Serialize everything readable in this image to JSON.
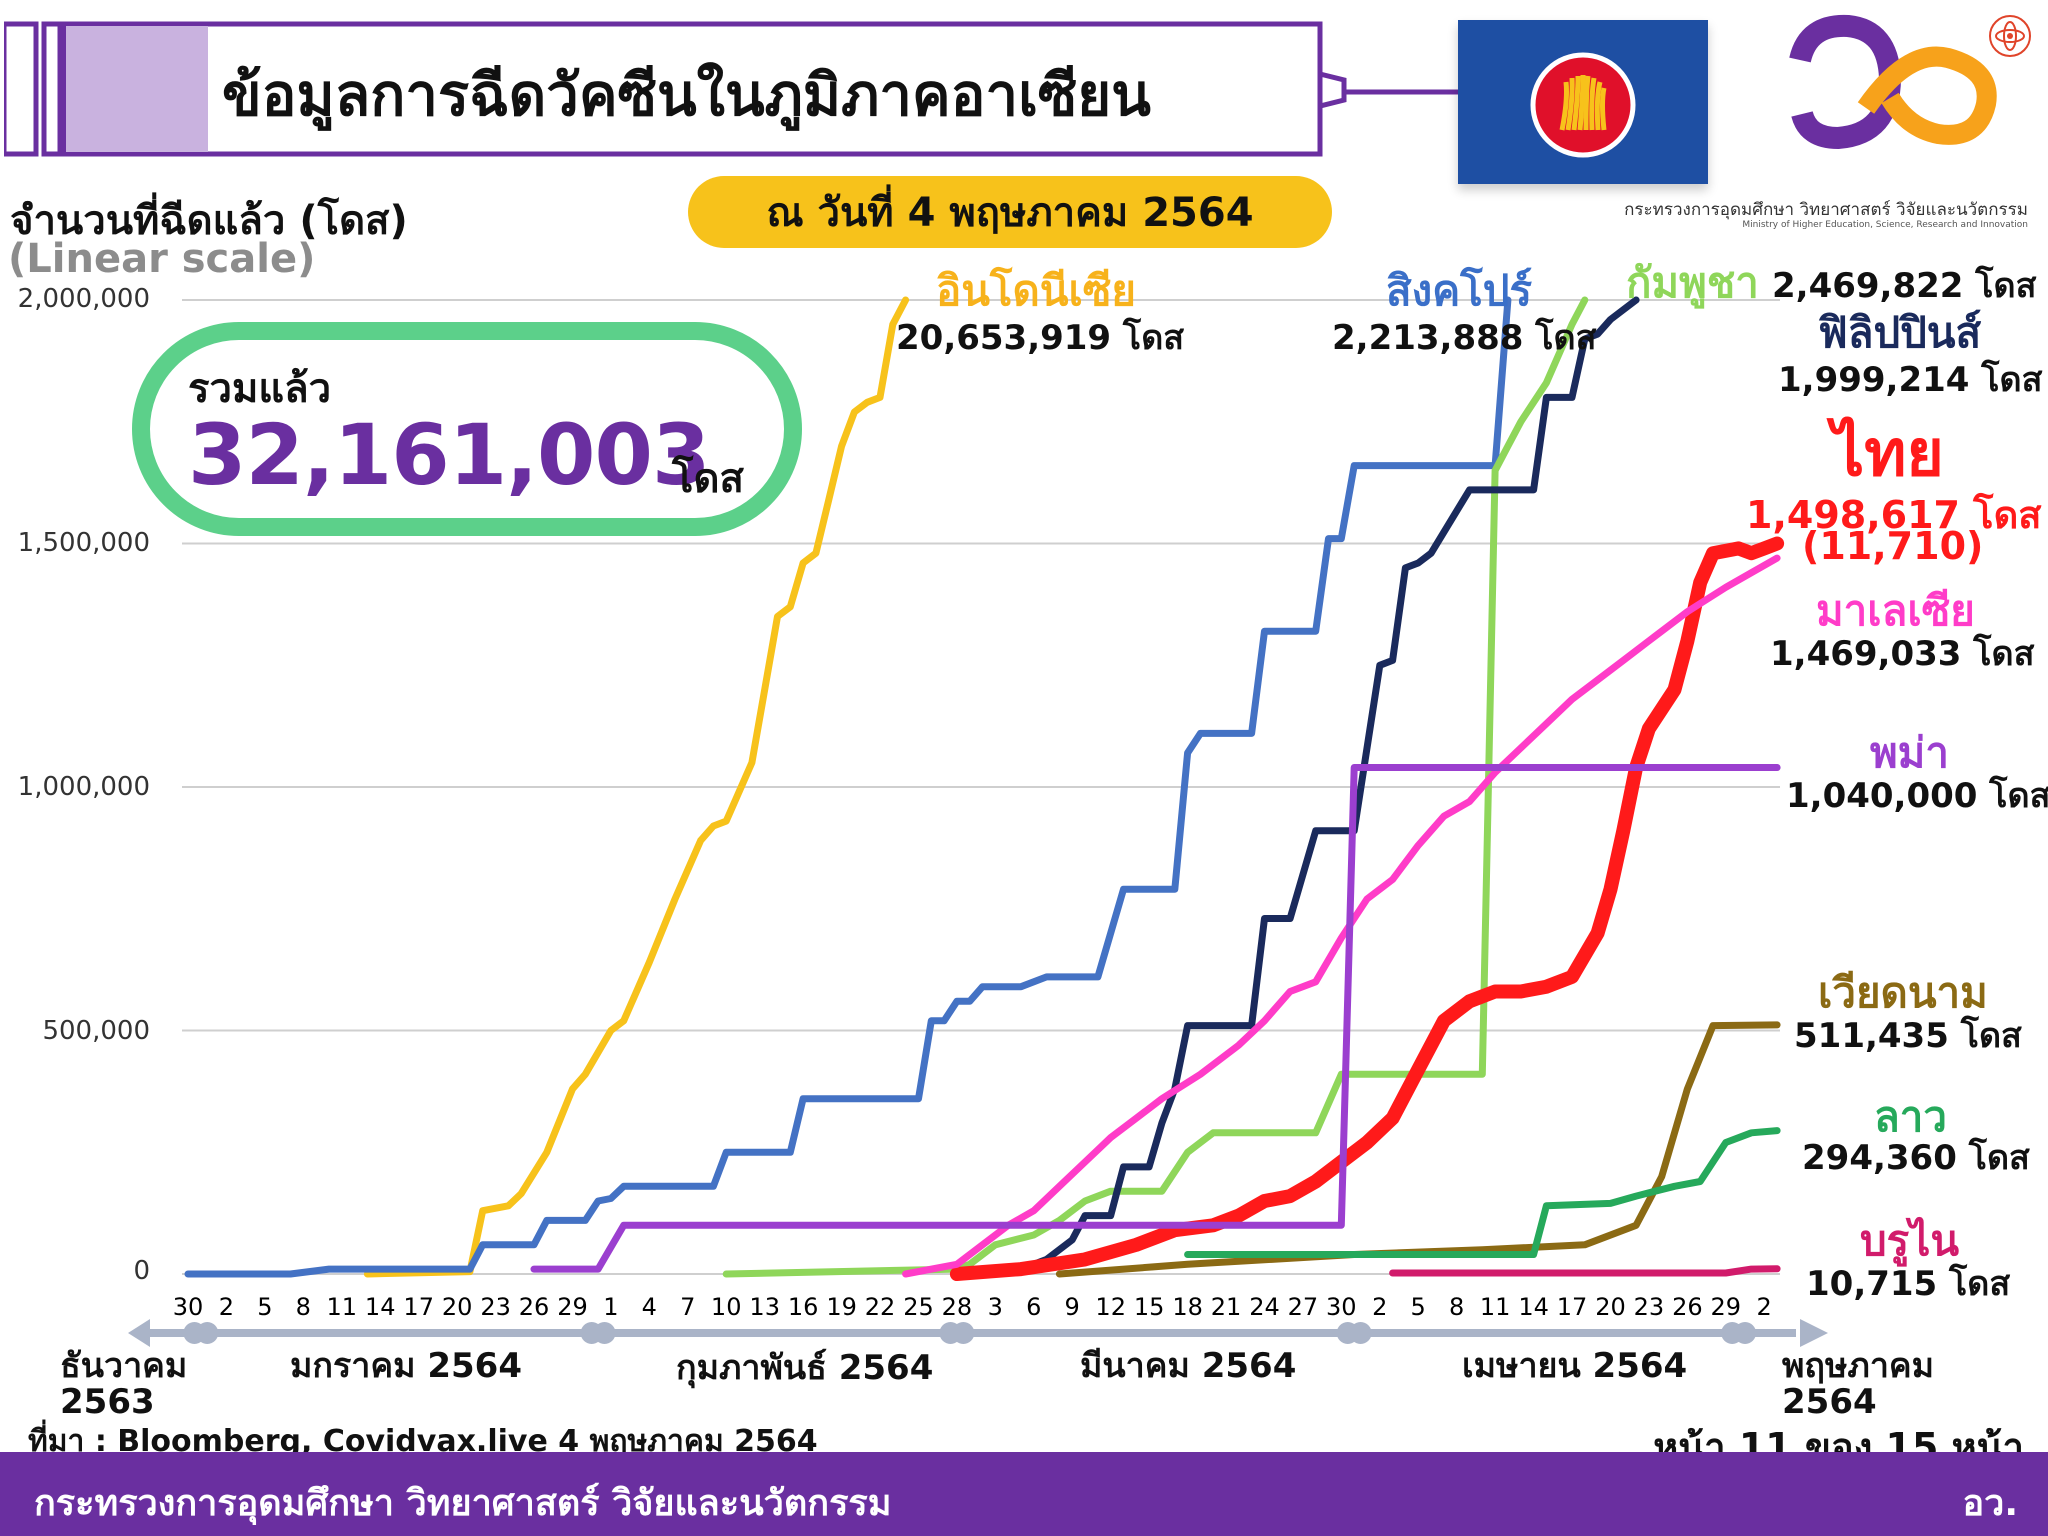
{
  "header": {
    "title": "ข้อมูลการฉีดวัคซีนในภูมิภาคอาเซียน",
    "date": "ณ วันที่ 4 พฤษภาคม 2564",
    "ministry_th": "กระทรวงการอุดมศึกษา วิทยาศาสตร์ วิจัยและนวัตกรรม",
    "ministry_en": "Ministry of Higher Education, Science, Research and Innovation"
  },
  "colors": {
    "purple": "#6a2fa0",
    "green_box": "#5cd08a",
    "date_pill": "#f7c21b",
    "asean_blue": "#1e4fa3"
  },
  "icons": [
    "asean-flag-icon",
    "ministry-logo-icon",
    "atom-icon"
  ],
  "total": {
    "label": "รวมแล้ว",
    "value": "32,161,003",
    "unit": "โดส"
  },
  "footer": {
    "org": "กระทรวงการอุดมศึกษา วิทยาศาสตร์ วิจัยและนวัตกรรม",
    "abbr": "อว.",
    "source": "ที่มา : Bloomberg, Covidvax.live 4 พฤษภาคม 2564",
    "page": "หน้า 11 ของ 15 หน้า"
  },
  "chart_data": {
    "type": "line",
    "ylabel": "จำนวนที่ฉีดแล้ว (โดส)",
    "yscale": "(Linear scale)",
    "ylim": [
      0,
      2000000
    ],
    "yticks": [
      "0",
      "500,000",
      "1,000,000",
      "1,500,000",
      "2,000,000"
    ],
    "ytick_values": [
      0,
      500000,
      1000000,
      1500000,
      2000000
    ],
    "grid": true,
    "x_day_labels": [
      "30",
      "2",
      "5",
      "8",
      "11",
      "14",
      "17",
      "20",
      "23",
      "26",
      "29",
      "1",
      "4",
      "7",
      "10",
      "13",
      "16",
      "19",
      "22",
      "25",
      "28",
      "3",
      "6",
      "9",
      "12",
      "15",
      "18",
      "21",
      "24",
      "27",
      "30",
      "2",
      "5",
      "8",
      "11",
      "14",
      "17",
      "20",
      "23",
      "26",
      "29",
      "2"
    ],
    "x_day_start": "2020-12-30",
    "months": [
      {
        "label": "ธันวาคม\n2563"
      },
      {
        "label": "มกราคม 2564"
      },
      {
        "label": "กุมภาพันธ์ 2564"
      },
      {
        "label": "มีนาคม 2564"
      },
      {
        "label": "เมษายน 2564"
      },
      {
        "label": "พฤษภาคม\n2564"
      }
    ],
    "series": [
      {
        "name": "อินโดนีเซีย",
        "color": "#f7c21b",
        "doses": "20,653,919 โดส",
        "points": [
          [
            "2021-01-13",
            0
          ],
          [
            "2021-01-21",
            5000
          ],
          [
            "2021-01-22",
            130000
          ],
          [
            "2021-01-24",
            140000
          ],
          [
            "2021-01-25",
            165000
          ],
          [
            "2021-01-27",
            250000
          ],
          [
            "2021-01-29",
            380000
          ],
          [
            "2021-01-30",
            410000
          ],
          [
            "2021-02-01",
            500000
          ],
          [
            "2021-02-02",
            520000
          ],
          [
            "2021-02-04",
            640000
          ],
          [
            "2021-02-06",
            770000
          ],
          [
            "2021-02-08",
            890000
          ],
          [
            "2021-02-09",
            920000
          ],
          [
            "2021-02-10",
            930000
          ],
          [
            "2021-02-12",
            1050000
          ],
          [
            "2021-02-13",
            1200000
          ],
          [
            "2021-02-14",
            1350000
          ],
          [
            "2021-02-15",
            1370000
          ],
          [
            "2021-02-16",
            1460000
          ],
          [
            "2021-02-17",
            1480000
          ],
          [
            "2021-02-18",
            1590000
          ],
          [
            "2021-02-19",
            1700000
          ],
          [
            "2021-02-20",
            1770000
          ],
          [
            "2021-02-21",
            1790000
          ],
          [
            "2021-02-22",
            1800000
          ],
          [
            "2021-02-23",
            1950000
          ],
          [
            "2021-02-24",
            2000000
          ]
        ]
      },
      {
        "name": "สิงคโปร์",
        "color": "#4472c4",
        "doses": "2,213,888 โดส",
        "points": [
          [
            "2020-12-30",
            0
          ],
          [
            "2021-01-07",
            0
          ],
          [
            "2021-01-10",
            10000
          ],
          [
            "2021-01-21",
            10000
          ],
          [
            "2021-01-22",
            60000
          ],
          [
            "2021-01-26",
            60000
          ],
          [
            "2021-01-27",
            110000
          ],
          [
            "2021-01-30",
            110000
          ],
          [
            "2021-01-31",
            150000
          ],
          [
            "2021-02-01",
            155000
          ],
          [
            "2021-02-02",
            180000
          ],
          [
            "2021-02-09",
            180000
          ],
          [
            "2021-02-10",
            250000
          ],
          [
            "2021-02-15",
            250000
          ],
          [
            "2021-02-16",
            360000
          ],
          [
            "2021-02-25",
            360000
          ],
          [
            "2021-02-26",
            520000
          ],
          [
            "2021-02-27",
            520000
          ],
          [
            "2021-02-28",
            560000
          ],
          [
            "2021-03-01",
            560000
          ],
          [
            "2021-03-02",
            590000
          ],
          [
            "2021-03-05",
            590000
          ],
          [
            "2021-03-07",
            610000
          ],
          [
            "2021-03-11",
            610000
          ],
          [
            "2021-03-13",
            790000
          ],
          [
            "2021-03-17",
            790000
          ],
          [
            "2021-03-18",
            1070000
          ],
          [
            "2021-03-19",
            1110000
          ],
          [
            "2021-03-23",
            1110000
          ],
          [
            "2021-03-24",
            1320000
          ],
          [
            "2021-03-28",
            1320000
          ],
          [
            "2021-03-29",
            1510000
          ],
          [
            "2021-03-30",
            1510000
          ],
          [
            "2021-03-31",
            1660000
          ],
          [
            "2021-04-11",
            1660000
          ],
          [
            "2021-04-12",
            2000000
          ]
        ]
      },
      {
        "name": "กัมพูชา",
        "color": "#8fd65a",
        "doses": "2,469,822 โดส",
        "points": [
          [
            "2021-02-10",
            0
          ],
          [
            "2021-02-28",
            10000
          ],
          [
            "2021-03-01",
            20000
          ],
          [
            "2021-03-03",
            60000
          ],
          [
            "2021-03-06",
            80000
          ],
          [
            "2021-03-08",
            110000
          ],
          [
            "2021-03-10",
            150000
          ],
          [
            "2021-03-12",
            170000
          ],
          [
            "2021-03-16",
            170000
          ],
          [
            "2021-03-18",
            250000
          ],
          [
            "2021-03-20",
            290000
          ],
          [
            "2021-03-28",
            290000
          ],
          [
            "2021-03-30",
            410000
          ],
          [
            "2021-04-10",
            410000
          ],
          [
            "2021-04-11",
            1650000
          ],
          [
            "2021-04-12",
            1700000
          ],
          [
            "2021-04-13",
            1750000
          ],
          [
            "2021-04-15",
            1830000
          ],
          [
            "2021-04-17",
            1950000
          ],
          [
            "2021-04-18",
            2000000
          ]
        ]
      },
      {
        "name": "ฟิลิปปินส์",
        "color": "#1a2a5c",
        "doses": "1,999,214 โดส",
        "points": [
          [
            "2021-03-01",
            0
          ],
          [
            "2021-03-05",
            10000
          ],
          [
            "2021-03-07",
            30000
          ],
          [
            "2021-03-09",
            70000
          ],
          [
            "2021-03-10",
            120000
          ],
          [
            "2021-03-12",
            120000
          ],
          [
            "2021-03-13",
            220000
          ],
          [
            "2021-03-15",
            220000
          ],
          [
            "2021-03-16",
            310000
          ],
          [
            "2021-03-17",
            380000
          ],
          [
            "2021-03-18",
            510000
          ],
          [
            "2021-03-23",
            510000
          ],
          [
            "2021-03-24",
            730000
          ],
          [
            "2021-03-26",
            730000
          ],
          [
            "2021-03-28",
            910000
          ],
          [
            "2021-03-31",
            910000
          ],
          [
            "2021-04-02",
            1250000
          ],
          [
            "2021-04-03",
            1260000
          ],
          [
            "2021-04-04",
            1450000
          ],
          [
            "2021-04-05",
            1460000
          ],
          [
            "2021-04-06",
            1480000
          ],
          [
            "2021-04-09",
            1610000
          ],
          [
            "2021-04-14",
            1610000
          ],
          [
            "2021-04-15",
            1800000
          ],
          [
            "2021-04-17",
            1800000
          ],
          [
            "2021-04-18",
            1920000
          ],
          [
            "2021-04-19",
            1930000
          ],
          [
            "2021-04-20",
            1960000
          ],
          [
            "2021-04-22",
            2000000
          ]
        ]
      },
      {
        "name": "ไทย",
        "color": "#ff1a1a",
        "doses": "1,498,617 โดส",
        "extra": "(11,710)",
        "points": [
          [
            "2021-02-28",
            0
          ],
          [
            "2021-03-05",
            10000
          ],
          [
            "2021-03-10",
            30000
          ],
          [
            "2021-03-14",
            60000
          ],
          [
            "2021-03-17",
            90000
          ],
          [
            "2021-03-20",
            100000
          ],
          [
            "2021-03-22",
            120000
          ],
          [
            "2021-03-24",
            150000
          ],
          [
            "2021-03-26",
            160000
          ],
          [
            "2021-03-28",
            190000
          ],
          [
            "2021-03-30",
            230000
          ],
          [
            "2021-04-01",
            270000
          ],
          [
            "2021-04-03",
            320000
          ],
          [
            "2021-04-05",
            420000
          ],
          [
            "2021-04-07",
            520000
          ],
          [
            "2021-04-09",
            560000
          ],
          [
            "2021-04-11",
            580000
          ],
          [
            "2021-04-13",
            580000
          ],
          [
            "2021-04-15",
            590000
          ],
          [
            "2021-04-17",
            610000
          ],
          [
            "2021-04-19",
            700000
          ],
          [
            "2021-04-20",
            790000
          ],
          [
            "2021-04-21",
            910000
          ],
          [
            "2021-04-22",
            1040000
          ],
          [
            "2021-04-23",
            1120000
          ],
          [
            "2021-04-25",
            1200000
          ],
          [
            "2021-04-26",
            1300000
          ],
          [
            "2021-04-27",
            1420000
          ],
          [
            "2021-04-28",
            1480000
          ],
          [
            "2021-04-30",
            1490000
          ],
          [
            "2021-05-01",
            1480000
          ],
          [
            "2021-05-02",
            1490000
          ],
          [
            "2021-05-03",
            1500000
          ]
        ]
      },
      {
        "name": "มาเลเซีย",
        "color": "#ff3cc8",
        "doses": "1,469,033 โดส",
        "points": [
          [
            "2021-02-24",
            0
          ],
          [
            "2021-02-28",
            20000
          ],
          [
            "2021-03-02",
            60000
          ],
          [
            "2021-03-04",
            100000
          ],
          [
            "2021-03-06",
            130000
          ],
          [
            "2021-03-08",
            180000
          ],
          [
            "2021-03-10",
            230000
          ],
          [
            "2021-03-12",
            280000
          ],
          [
            "2021-03-14",
            320000
          ],
          [
            "2021-03-16",
            360000
          ],
          [
            "2021-03-19",
            410000
          ],
          [
            "2021-03-22",
            470000
          ],
          [
            "2021-03-24",
            520000
          ],
          [
            "2021-03-26",
            580000
          ],
          [
            "2021-03-28",
            600000
          ],
          [
            "2021-03-30",
            690000
          ],
          [
            "2021-04-01",
            770000
          ],
          [
            "2021-04-03",
            810000
          ],
          [
            "2021-04-05",
            880000
          ],
          [
            "2021-04-07",
            940000
          ],
          [
            "2021-04-09",
            970000
          ],
          [
            "2021-04-11",
            1030000
          ],
          [
            "2021-04-13",
            1080000
          ],
          [
            "2021-04-15",
            1130000
          ],
          [
            "2021-04-17",
            1180000
          ],
          [
            "2021-04-19",
            1220000
          ],
          [
            "2021-04-21",
            1260000
          ],
          [
            "2021-04-23",
            1300000
          ],
          [
            "2021-04-26",
            1360000
          ],
          [
            "2021-04-29",
            1410000
          ],
          [
            "2021-05-01",
            1440000
          ],
          [
            "2021-05-03",
            1470000
          ]
        ]
      },
      {
        "name": "พม่า",
        "color": "#9b3fcf",
        "doses": "1,040,000 โดส",
        "points": [
          [
            "2021-01-26",
            10000
          ],
          [
            "2021-01-31",
            10000
          ],
          [
            "2021-02-02",
            100000
          ],
          [
            "2021-03-30",
            100000
          ],
          [
            "2021-03-31",
            1040000
          ],
          [
            "2021-05-03",
            1040000
          ]
        ]
      },
      {
        "name": "เวียดนาม",
        "color": "#8b6a14",
        "doses": "511,435 โดส",
        "points": [
          [
            "2021-03-08",
            0
          ],
          [
            "2021-03-18",
            20000
          ],
          [
            "2021-03-31",
            40000
          ],
          [
            "2021-04-10",
            50000
          ],
          [
            "2021-04-18",
            60000
          ],
          [
            "2021-04-22",
            100000
          ],
          [
            "2021-04-24",
            200000
          ],
          [
            "2021-04-26",
            380000
          ],
          [
            "2021-04-28",
            510000
          ],
          [
            "2021-05-03",
            511435
          ]
        ]
      },
      {
        "name": "ลาว",
        "color": "#26a95b",
        "doses": "294,360 โดส",
        "points": [
          [
            "2021-03-18",
            40000
          ],
          [
            "2021-04-14",
            40000
          ],
          [
            "2021-04-15",
            140000
          ],
          [
            "2021-04-20",
            145000
          ],
          [
            "2021-04-22",
            160000
          ],
          [
            "2021-04-25",
            180000
          ],
          [
            "2021-04-27",
            190000
          ],
          [
            "2021-04-29",
            270000
          ],
          [
            "2021-05-01",
            290000
          ],
          [
            "2021-05-03",
            294360
          ]
        ]
      },
      {
        "name": "บรูไน",
        "color": "#d11b6b",
        "doses": "10,715 โดส",
        "points": [
          [
            "2021-04-03",
            2000
          ],
          [
            "2021-04-29",
            2000
          ],
          [
            "2021-05-01",
            10000
          ],
          [
            "2021-05-03",
            10715
          ]
        ]
      }
    ]
  }
}
